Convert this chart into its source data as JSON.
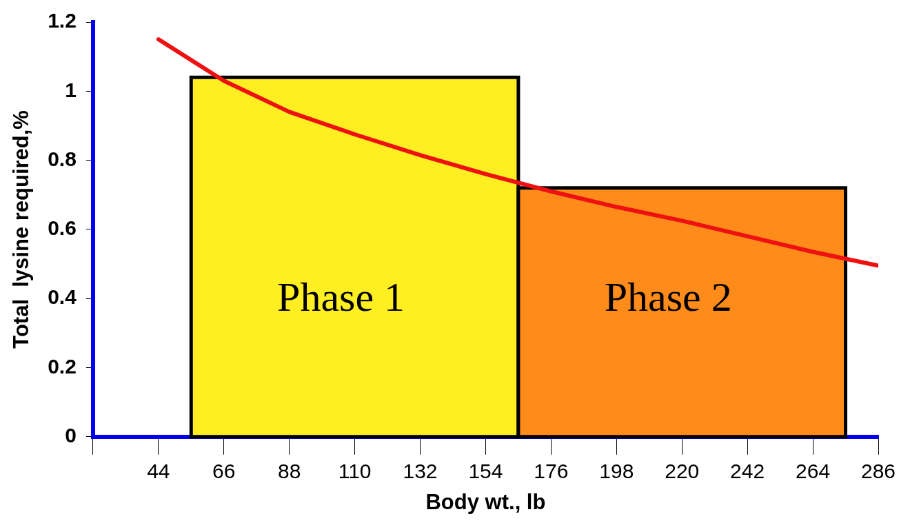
{
  "chart_data": {
    "type": "histogram",
    "xlabel": "Body wt., lb",
    "ylabel": "Total  lysine required,%",
    "bins": [
      55,
      165,
      275
    ],
    "values": [
      1.04,
      0.72
    ],
    "colors": [
      "#ffee22",
      "#ff8c1a"
    ],
    "series": [
      {
        "type": "line",
        "color": "#ee1111",
        "x": [
          44,
          66,
          88,
          110,
          132,
          154,
          176,
          198,
          220,
          242,
          264,
          286
        ],
        "values": [
          1.15,
          1.03,
          0.94,
          0.875,
          0.815,
          0.76,
          0.71,
          0.665,
          0.625,
          0.58,
          0.535,
          0.495
        ]
      }
    ],
    "xlim": [
      22,
      286
    ],
    "xticks": [
      {
        "value": 22,
        "label": null
      },
      44,
      66,
      88,
      110,
      132,
      154,
      176,
      198,
      220,
      242,
      264,
      286
    ],
    "ylim": [
      0,
      1.2
    ],
    "yticks": [
      0,
      0.2,
      0.4,
      0.6,
      0.8,
      1,
      1.2
    ],
    "annotations": [
      "Phase 1",
      "Phase 2"
    ]
  }
}
